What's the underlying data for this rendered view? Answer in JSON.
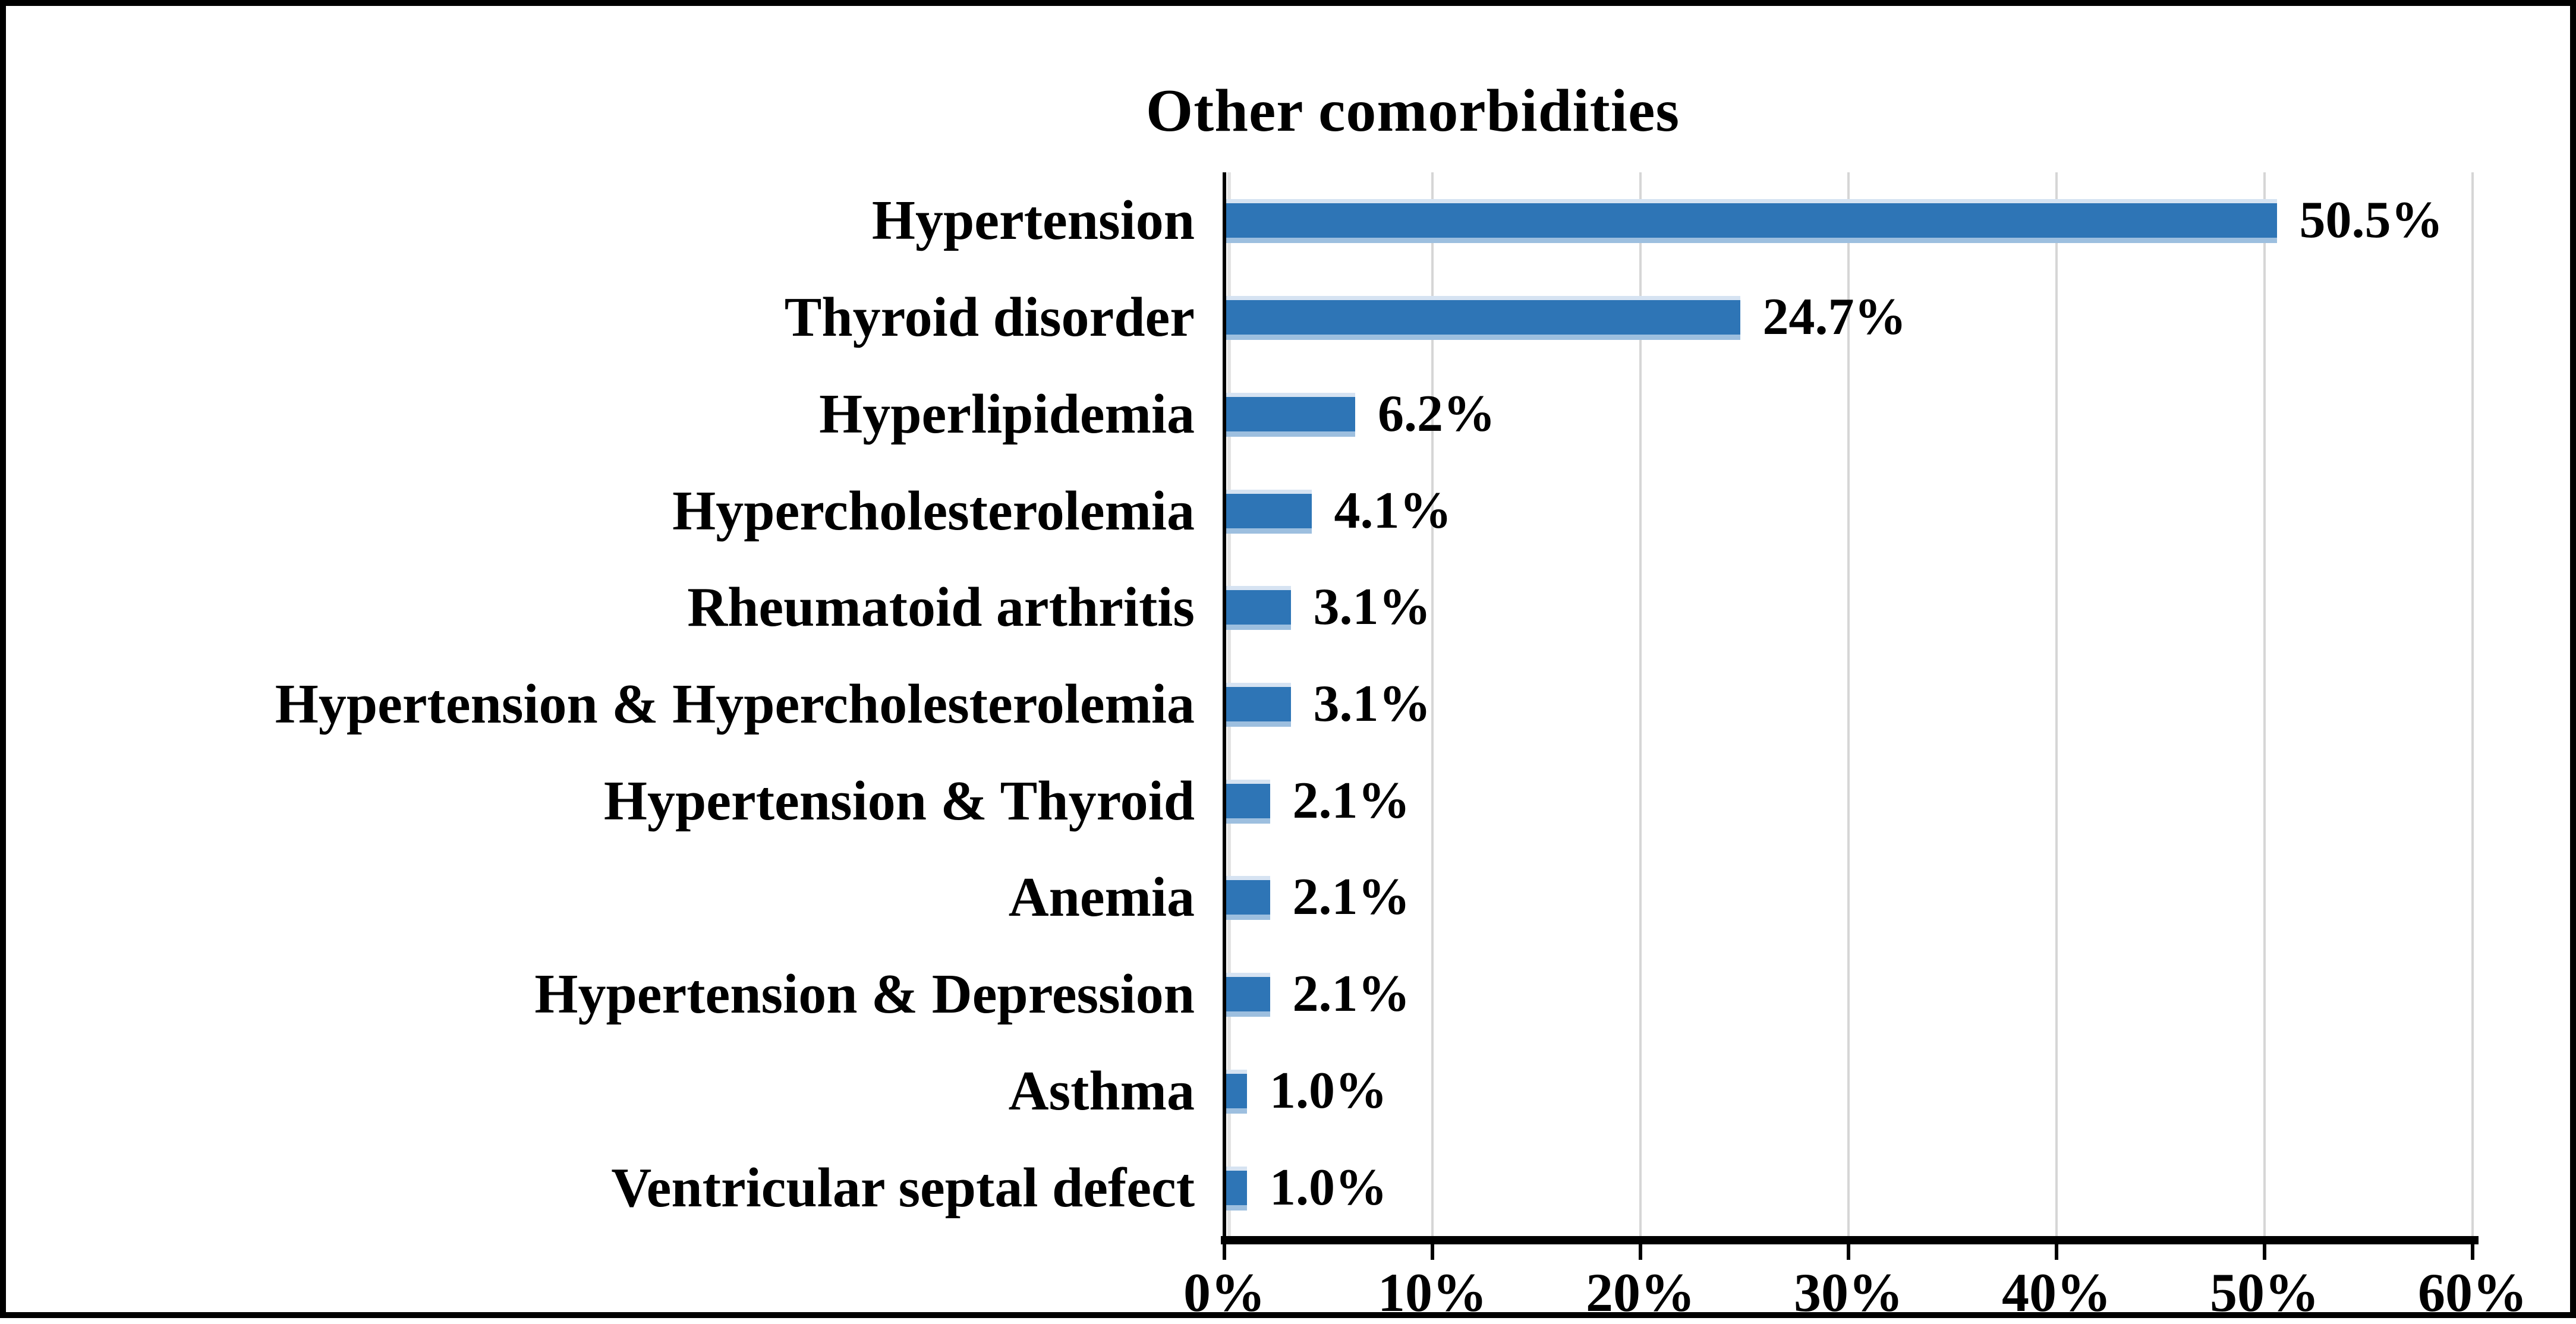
{
  "chart_data": {
    "type": "bar",
    "orientation": "horizontal",
    "title": "Other comorbidities",
    "categories": [
      "Hypertension",
      "Thyroid disorder",
      "Hyperlipidemia",
      "Hypercholesterolemia",
      "Rheumatoid arthritis",
      "Hypertension & Hypercholesterolemia",
      "Hypertension & Thyroid",
      "Anemia",
      "Hypertension & Depression",
      "Asthma",
      "Ventricular septal defect"
    ],
    "values": [
      50.5,
      24.7,
      6.2,
      4.1,
      3.1,
      3.1,
      2.1,
      2.1,
      2.1,
      1.0,
      1.0
    ],
    "value_labels": [
      "50.5%",
      "24.7%",
      "6.2%",
      "4.1%",
      "3.1%",
      "3.1%",
      "2.1%",
      "2.1%",
      "2.1%",
      "1.0%",
      "1.0%"
    ],
    "x_ticks": [
      0,
      10,
      20,
      30,
      40,
      50,
      60
    ],
    "x_tick_labels": [
      "0%",
      "10%",
      "20%",
      "30%",
      "40%",
      "50%",
      "60%"
    ],
    "xlim": [
      0,
      60
    ],
    "grid": "vertical",
    "legend": "none",
    "colors": {
      "bar": "#2E75B6",
      "bar_edge_top": "#D6E3F2",
      "bar_edge_bottom": "#9DBFDF",
      "gridline": "#D6D6D6",
      "axis": "#000000",
      "text": "#000000",
      "background": "#FFFFFF",
      "border": "#000000"
    }
  }
}
